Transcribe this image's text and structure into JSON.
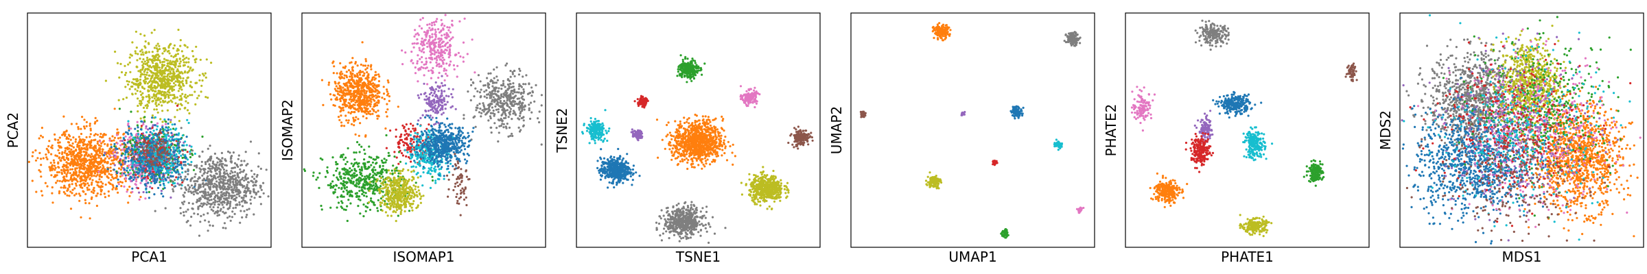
{
  "chart_data": [
    {
      "type": "scatter",
      "xlabel": "PCA1",
      "ylabel": "PCA2",
      "ticks": "none",
      "xlim": [
        0,
        100
      ],
      "ylim": [
        0,
        100
      ],
      "clusters": [
        {
          "color": "#bcbd22",
          "x": 55,
          "y": 72,
          "sx": 7,
          "sy": 7,
          "n": 700
        },
        {
          "color": "#ff7f0e",
          "x": 25,
          "y": 36,
          "sx": 9,
          "sy": 7,
          "n": 900
        },
        {
          "color": "#e377c2",
          "x": 48,
          "y": 38,
          "sx": 6,
          "sy": 6,
          "n": 300
        },
        {
          "color": "#2ca02c",
          "x": 52,
          "y": 40,
          "sx": 6,
          "sy": 6,
          "n": 280
        },
        {
          "color": "#9467bd",
          "x": 50,
          "y": 38,
          "sx": 6,
          "sy": 6,
          "n": 200
        },
        {
          "color": "#d62728",
          "x": 52,
          "y": 39,
          "sx": 5,
          "sy": 5,
          "n": 180
        },
        {
          "color": "#17becf",
          "x": 54,
          "y": 40,
          "sx": 6,
          "sy": 6,
          "n": 260
        },
        {
          "color": "#1f77b4",
          "x": 52,
          "y": 38,
          "sx": 7,
          "sy": 7,
          "n": 320
        },
        {
          "color": "#8c564b",
          "x": 52,
          "y": 40,
          "sx": 4,
          "sy": 4,
          "n": 80
        },
        {
          "color": "#7f7f7f",
          "x": 79,
          "y": 26,
          "sx": 8,
          "sy": 7,
          "n": 700
        }
      ]
    },
    {
      "type": "scatter",
      "xlabel": "ISOMAP1",
      "ylabel": "ISOMAP2",
      "ticks": "none",
      "xlim": [
        0,
        100
      ],
      "ylim": [
        0,
        100
      ],
      "clusters": [
        {
          "color": "#ff7f0e",
          "x": 23,
          "y": 66,
          "sx": 5,
          "sy": 6,
          "n": 600
        },
        {
          "color": "#e377c2",
          "x": 55,
          "y": 85,
          "sx": 5,
          "sy": 6,
          "n": 300
        },
        {
          "color": "#9467bd",
          "x": 55,
          "y": 62,
          "sx": 3,
          "sy": 4,
          "n": 150
        },
        {
          "color": "#7f7f7f",
          "x": 83,
          "y": 62,
          "sx": 6,
          "sy": 6,
          "n": 400
        },
        {
          "color": "#d62728",
          "x": 45,
          "y": 45,
          "sx": 4,
          "sy": 4,
          "n": 120
        },
        {
          "color": "#17becf",
          "x": 52,
          "y": 40,
          "sx": 4,
          "sy": 5,
          "n": 250
        },
        {
          "color": "#1f77b4",
          "x": 58,
          "y": 44,
          "sx": 5,
          "sy": 4,
          "n": 500
        },
        {
          "color": "#2ca02c",
          "x": 25,
          "y": 28,
          "sx": 8,
          "sy": 6,
          "n": 450
        },
        {
          "color": "#bcbd22",
          "x": 40,
          "y": 23,
          "sx": 4,
          "sy": 4,
          "n": 400
        },
        {
          "color": "#8c564b",
          "x": 65,
          "y": 28,
          "sx": 2,
          "sy": 5,
          "n": 60
        }
      ]
    },
    {
      "type": "scatter",
      "xlabel": "TSNE1",
      "ylabel": "TSNE2",
      "ticks": "none",
      "xlim": [
        0,
        100
      ],
      "ylim": [
        0,
        100
      ],
      "clusters": [
        {
          "color": "#2ca02c",
          "x": 46,
          "y": 76,
          "sx": 2,
          "sy": 2,
          "n": 250
        },
        {
          "color": "#e377c2",
          "x": 71,
          "y": 64,
          "sx": 1.5,
          "sy": 1.5,
          "n": 150
        },
        {
          "color": "#d62728",
          "x": 27,
          "y": 62,
          "sx": 1,
          "sy": 1,
          "n": 80
        },
        {
          "color": "#17becf",
          "x": 8,
          "y": 50,
          "sx": 2,
          "sy": 2,
          "n": 200
        },
        {
          "color": "#9467bd",
          "x": 25,
          "y": 48,
          "sx": 1,
          "sy": 1,
          "n": 70
        },
        {
          "color": "#ff7f0e",
          "x": 50,
          "y": 45,
          "sx": 5,
          "sy": 4.5,
          "n": 900
        },
        {
          "color": "#8c564b",
          "x": 92,
          "y": 47,
          "sx": 1.8,
          "sy": 1.8,
          "n": 150
        },
        {
          "color": "#1f77b4",
          "x": 16,
          "y": 33,
          "sx": 3,
          "sy": 2.5,
          "n": 450
        },
        {
          "color": "#bcbd22",
          "x": 78,
          "y": 25,
          "sx": 3.5,
          "sy": 2.8,
          "n": 500
        },
        {
          "color": "#7f7f7f",
          "x": 44,
          "y": 11,
          "sx": 4,
          "sy": 3,
          "n": 500
        }
      ]
    },
    {
      "type": "scatter",
      "xlabel": "UMAP1",
      "ylabel": "UMAP2",
      "ticks": "none",
      "xlim": [
        0,
        100
      ],
      "ylim": [
        0,
        100
      ],
      "clusters": [
        {
          "color": "#ff7f0e",
          "x": 37,
          "y": 92,
          "sx": 1.5,
          "sy": 1.5,
          "n": 150
        },
        {
          "color": "#7f7f7f",
          "x": 91,
          "y": 89,
          "sx": 1.3,
          "sy": 1.3,
          "n": 130
        },
        {
          "color": "#8c564b",
          "x": 5,
          "y": 57,
          "sx": 0.6,
          "sy": 0.6,
          "n": 30
        },
        {
          "color": "#9467bd",
          "x": 46,
          "y": 57,
          "sx": 0.4,
          "sy": 0.4,
          "n": 15
        },
        {
          "color": "#1f77b4",
          "x": 68,
          "y": 58,
          "sx": 1.1,
          "sy": 1.1,
          "n": 90
        },
        {
          "color": "#17becf",
          "x": 85,
          "y": 44,
          "sx": 0.8,
          "sy": 0.8,
          "n": 50
        },
        {
          "color": "#d62728",
          "x": 59,
          "y": 36,
          "sx": 0.5,
          "sy": 0.5,
          "n": 25
        },
        {
          "color": "#bcbd22",
          "x": 34,
          "y": 28,
          "sx": 1.3,
          "sy": 1.3,
          "n": 120
        },
        {
          "color": "#e377c2",
          "x": 94,
          "y": 16,
          "sx": 0.6,
          "sy": 0.6,
          "n": 30
        },
        {
          "color": "#2ca02c",
          "x": 63,
          "y": 6,
          "sx": 0.8,
          "sy": 0.8,
          "n": 50
        }
      ]
    },
    {
      "type": "scatter",
      "xlabel": "PHATE1",
      "ylabel": "PHATE2",
      "ticks": "none",
      "xlim": [
        0,
        100
      ],
      "ylim": [
        0,
        100
      ],
      "clusters": [
        {
          "color": "#7f7f7f",
          "x": 36,
          "y": 91,
          "sx": 3,
          "sy": 2,
          "n": 200
        },
        {
          "color": "#8c564b",
          "x": 93,
          "y": 75,
          "sx": 1,
          "sy": 2,
          "n": 60
        },
        {
          "color": "#e377c2",
          "x": 7,
          "y": 60,
          "sx": 2,
          "sy": 3,
          "n": 120
        },
        {
          "color": "#1f77b4",
          "x": 45,
          "y": 61,
          "sx": 3,
          "sy": 2,
          "n": 250
        },
        {
          "color": "#9467bd",
          "x": 33,
          "y": 50,
          "sx": 1.5,
          "sy": 2.5,
          "n": 100
        },
        {
          "color": "#17becf",
          "x": 53,
          "y": 44,
          "sx": 2,
          "sy": 3,
          "n": 200
        },
        {
          "color": "#d62728",
          "x": 31,
          "y": 41,
          "sx": 2,
          "sy": 3,
          "n": 200
        },
        {
          "color": "#2ca02c",
          "x": 78,
          "y": 32,
          "sx": 1.5,
          "sy": 2,
          "n": 150
        },
        {
          "color": "#ff7f0e",
          "x": 17,
          "y": 24,
          "sx": 2.5,
          "sy": 2.5,
          "n": 250
        },
        {
          "color": "#bcbd22",
          "x": 53,
          "y": 9,
          "sx": 2.5,
          "sy": 1.5,
          "n": 200
        }
      ]
    },
    {
      "type": "scatter",
      "xlabel": "MDS1",
      "ylabel": "MDS2",
      "ticks": "none",
      "xlim": [
        0,
        100
      ],
      "ylim": [
        0,
        100
      ],
      "clusters": [
        {
          "color": "#7f7f7f",
          "x": 30,
          "y": 63,
          "sx": 9,
          "sy": 10,
          "n": 900
        },
        {
          "color": "#bcbd22",
          "x": 53,
          "y": 70,
          "sx": 6,
          "sy": 9,
          "n": 700
        },
        {
          "color": "#1f77b4",
          "x": 30,
          "y": 36,
          "sx": 12,
          "sy": 11,
          "n": 900
        },
        {
          "color": "#ff7f0e",
          "x": 73,
          "y": 38,
          "sx": 9,
          "sy": 11,
          "n": 1100
        },
        {
          "color": "#2ca02c",
          "x": 60,
          "y": 60,
          "sx": 14,
          "sy": 14,
          "n": 400
        },
        {
          "color": "#e377c2",
          "x": 55,
          "y": 48,
          "sx": 16,
          "sy": 16,
          "n": 400
        },
        {
          "color": "#9467bd",
          "x": 50,
          "y": 50,
          "sx": 16,
          "sy": 16,
          "n": 300
        },
        {
          "color": "#d62728",
          "x": 45,
          "y": 52,
          "sx": 15,
          "sy": 15,
          "n": 300
        },
        {
          "color": "#17becf",
          "x": 50,
          "y": 48,
          "sx": 16,
          "sy": 16,
          "n": 300
        },
        {
          "color": "#8c564b",
          "x": 45,
          "y": 30,
          "sx": 15,
          "sy": 12,
          "n": 250
        }
      ]
    }
  ]
}
